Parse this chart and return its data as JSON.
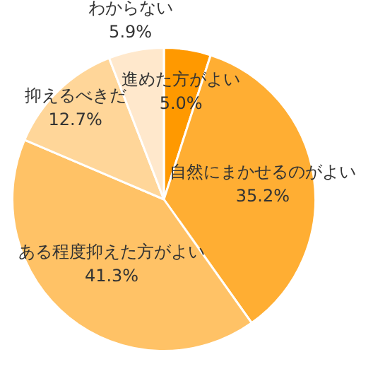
{
  "chart_data": {
    "type": "pie",
    "categories": [
      "進めた方がよい",
      "自然にまかせるのがよい",
      "ある程度抑えた方がよい",
      "抑えるべきだ",
      "わからない"
    ],
    "values": [
      5.0,
      35.2,
      41.3,
      12.7,
      5.9
    ],
    "value_labels": [
      "5.0%",
      "35.2%",
      "41.3%",
      "12.7%",
      "5.9%"
    ],
    "colors": [
      "#ff9900",
      "#ffae33",
      "#ffc266",
      "#ffd699",
      "#ffe8cc"
    ]
  }
}
